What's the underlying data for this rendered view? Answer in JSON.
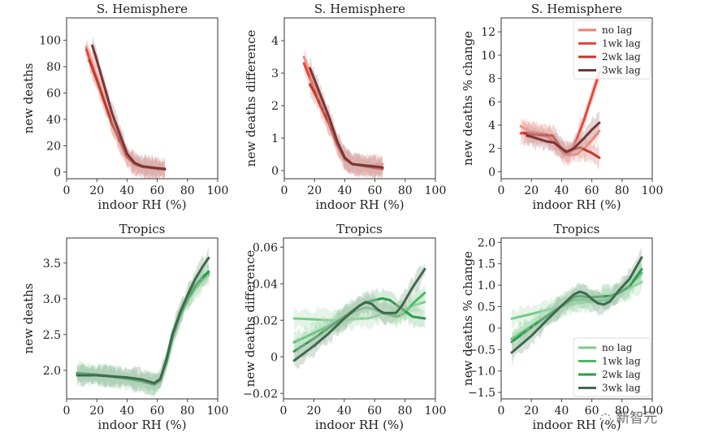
{
  "chart_data": [
    {
      "type": "line",
      "title": "S. Hemisphere",
      "xlabel": "indoor RH (%)",
      "ylabel": "new deaths",
      "xlim": [
        0,
        100
      ],
      "ylim": [
        -5,
        117
      ],
      "xticks": [
        0,
        20,
        40,
        60,
        80,
        100
      ],
      "yticks": [
        0,
        20,
        40,
        60,
        80,
        100
      ],
      "ytick_labels": [
        "0",
        "20",
        "40",
        "60",
        "80",
        "100"
      ],
      "legend": null,
      "series": [
        {
          "name": "no lag",
          "color": "#f08070",
          "x": [
            13,
            20,
            30,
            40,
            45,
            50,
            60,
            65
          ],
          "y": [
            95,
            72,
            38,
            12,
            6,
            4,
            2.5,
            2
          ]
        },
        {
          "name": "1wk lag",
          "color": "#e8483a",
          "x": [
            13,
            20,
            30,
            40,
            45,
            50,
            60,
            65
          ],
          "y": [
            93,
            70,
            37,
            11,
            6,
            4,
            2.5,
            2
          ]
        },
        {
          "name": "2wk lag",
          "color": "#c0392b",
          "x": [
            15,
            20,
            30,
            40,
            45,
            50,
            60,
            65
          ],
          "y": [
            85,
            70,
            37,
            12,
            6,
            4,
            2.5,
            2
          ]
        },
        {
          "name": "3wk lag",
          "color": "#7a3535",
          "x": [
            17,
            20,
            30,
            40,
            45,
            50,
            60,
            65
          ],
          "y": [
            96,
            85,
            45,
            14,
            7,
            4.5,
            3,
            2.5
          ]
        }
      ]
    },
    {
      "type": "line",
      "title": "S. Hemisphere",
      "xlabel": "indoor RH (%)",
      "ylabel": "new deaths difference",
      "xlim": [
        0,
        100
      ],
      "ylim": [
        -0.25,
        4.7
      ],
      "xticks": [
        0,
        20,
        40,
        60,
        80,
        100
      ],
      "yticks": [
        0,
        1,
        2,
        3,
        4
      ],
      "ytick_labels": [
        "0",
        "1",
        "2",
        "3",
        "4"
      ],
      "legend": null,
      "series": [
        {
          "name": "no lag",
          "color": "#f08070",
          "x": [
            13,
            20,
            30,
            35,
            40,
            45,
            55,
            65
          ],
          "y": [
            3.5,
            2.6,
            1.4,
            0.8,
            0.35,
            0.2,
            0.15,
            0.2
          ]
        },
        {
          "name": "1wk lag",
          "color": "#e8483a",
          "x": [
            13,
            20,
            30,
            35,
            40,
            45,
            55,
            65
          ],
          "y": [
            3.3,
            2.5,
            1.4,
            0.8,
            0.35,
            0.2,
            0.12,
            0.1
          ]
        },
        {
          "name": "2wk lag",
          "color": "#c0392b",
          "x": [
            17,
            20,
            30,
            35,
            40,
            45,
            55,
            65
          ],
          "y": [
            2.65,
            2.4,
            1.4,
            0.8,
            0.35,
            0.2,
            0.12,
            0.05
          ]
        },
        {
          "name": "3wk lag",
          "color": "#7a3535",
          "x": [
            17,
            20,
            30,
            35,
            40,
            45,
            55,
            65
          ],
          "y": [
            3.15,
            2.8,
            1.6,
            0.9,
            0.4,
            0.2,
            0.15,
            0.1
          ]
        }
      ]
    },
    {
      "type": "line",
      "title": "S. Hemisphere",
      "xlabel": "indoor RH (%)",
      "ylabel": "new deaths % change",
      "xlim": [
        0,
        100
      ],
      "ylim": [
        -0.6,
        13.2
      ],
      "xticks": [
        0,
        20,
        40,
        60,
        80,
        100
      ],
      "yticks": [
        0,
        2,
        4,
        6,
        8,
        10,
        12
      ],
      "ytick_labels": [
        "0",
        "2",
        "4",
        "6",
        "8",
        "10",
        "12"
      ],
      "legend": {
        "position": "top-right",
        "entries": [
          "no lag",
          "1wk lag",
          "2wk lag",
          "3wk lag"
        ]
      },
      "series": [
        {
          "name": "no lag",
          "color": "#f08070",
          "x": [
            13,
            20,
            30,
            35,
            42,
            45,
            50,
            55,
            60,
            65
          ],
          "y": [
            3.9,
            3.4,
            3.0,
            2.5,
            1.6,
            1.4,
            1.5,
            2.0,
            2.7,
            3.5
          ]
        },
        {
          "name": "1wk lag",
          "color": "#e8483a",
          "x": [
            13,
            20,
            30,
            35,
            42,
            45,
            50,
            55,
            60,
            65
          ],
          "y": [
            3.3,
            3.4,
            3.2,
            2.5,
            1.5,
            1.5,
            2.8,
            4.5,
            6.5,
            8.5
          ]
        },
        {
          "name": "2wk lag",
          "color": "#c0392b",
          "x": [
            15,
            20,
            30,
            34,
            40,
            44,
            48,
            52,
            60,
            65
          ],
          "y": [
            3.3,
            3.2,
            3.1,
            3.1,
            2.0,
            1.7,
            1.9,
            2.1,
            1.6,
            1.2
          ]
        },
        {
          "name": "3wk lag",
          "color": "#7a3535",
          "x": [
            17,
            20,
            30,
            35,
            40,
            43,
            48,
            55,
            60,
            65
          ],
          "y": [
            3.1,
            3.0,
            2.6,
            2.5,
            2.0,
            1.7,
            2.0,
            2.9,
            3.6,
            4.2
          ]
        }
      ]
    },
    {
      "type": "line",
      "title": "Tropics",
      "xlabel": "indoor RH (%)",
      "ylabel": "new deaths",
      "xlim": [
        0,
        100
      ],
      "ylim": [
        1.6,
        3.85
      ],
      "xticks": [
        0,
        20,
        40,
        60,
        80,
        100
      ],
      "yticks": [
        2.0,
        2.5,
        3.0,
        3.5
      ],
      "ytick_labels": [
        "2.0",
        "2.5",
        "3.0",
        "3.5"
      ],
      "legend": null,
      "series": [
        {
          "name": "no lag",
          "color": "#7cc98a",
          "x": [
            7,
            20,
            40,
            50,
            58,
            62,
            66,
            70,
            75,
            80,
            85,
            90,
            94
          ],
          "y": [
            1.96,
            1.93,
            1.88,
            1.84,
            1.8,
            1.85,
            2.1,
            2.45,
            2.75,
            2.97,
            3.13,
            3.25,
            3.33
          ]
        },
        {
          "name": "1wk lag",
          "color": "#4fb865",
          "x": [
            7,
            20,
            40,
            50,
            58,
            62,
            66,
            70,
            75,
            80,
            85,
            90,
            94
          ],
          "y": [
            1.96,
            1.94,
            1.88,
            1.84,
            1.8,
            1.85,
            2.1,
            2.45,
            2.75,
            2.98,
            3.15,
            3.28,
            3.36
          ]
        },
        {
          "name": "2wk lag",
          "color": "#2e9a4a",
          "x": [
            7,
            20,
            40,
            50,
            58,
            62,
            66,
            70,
            75,
            80,
            85,
            90,
            94
          ],
          "y": [
            1.96,
            1.94,
            1.89,
            1.85,
            1.8,
            1.86,
            2.12,
            2.46,
            2.77,
            3.0,
            3.18,
            3.3,
            3.38
          ]
        },
        {
          "name": "3wk lag",
          "color": "#3d6b4c",
          "x": [
            7,
            20,
            40,
            50,
            58,
            62,
            66,
            70,
            75,
            80,
            85,
            90,
            94
          ],
          "y": [
            1.93,
            1.93,
            1.9,
            1.87,
            1.82,
            1.88,
            2.15,
            2.5,
            2.8,
            3.05,
            3.27,
            3.45,
            3.57
          ]
        }
      ]
    },
    {
      "type": "line",
      "title": "Tropics",
      "xlabel": "indoor RH (%)",
      "ylabel": "new deaths difference",
      "xlim": [
        0,
        100
      ],
      "ylim": [
        -0.023,
        0.065
      ],
      "xticks": [
        0,
        20,
        40,
        60,
        80,
        100
      ],
      "yticks": [
        -0.02,
        0,
        0.02,
        0.04,
        0.06
      ],
      "ytick_labels": [
        "−0.02",
        "0",
        "0.02",
        "0.04",
        "0.06"
      ],
      "legend": null,
      "series": [
        {
          "name": "no lag",
          "color": "#7cc98a",
          "x": [
            7,
            20,
            30,
            40,
            50,
            55,
            60,
            65,
            70,
            74,
            80,
            85,
            93
          ],
          "y": [
            0.021,
            0.0205,
            0.02,
            0.02,
            0.021,
            0.021,
            0.022,
            0.024,
            0.024,
            0.022,
            0.026,
            0.028,
            0.03
          ]
        },
        {
          "name": "1wk lag",
          "color": "#4fb865",
          "x": [
            7,
            20,
            30,
            40,
            50,
            55,
            60,
            65,
            70,
            75,
            80,
            85,
            93
          ],
          "y": [
            0.008,
            0.013,
            0.017,
            0.022,
            0.026,
            0.027,
            0.026,
            0.024,
            0.023,
            0.022,
            0.024,
            0.029,
            0.035
          ]
        },
        {
          "name": "2wk lag",
          "color": "#2e9a4a",
          "x": [
            7,
            20,
            30,
            40,
            50,
            55,
            60,
            65,
            70,
            75,
            80,
            85,
            93
          ],
          "y": [
            0.003,
            0.01,
            0.016,
            0.022,
            0.028,
            0.03,
            0.031,
            0.032,
            0.031,
            0.028,
            0.025,
            0.022,
            0.021
          ]
        },
        {
          "name": "3wk lag",
          "color": "#3d6b4c",
          "x": [
            7,
            20,
            30,
            40,
            50,
            54,
            58,
            62,
            66,
            70,
            74,
            78,
            85,
            93
          ],
          "y": [
            -0.002,
            0.006,
            0.013,
            0.021,
            0.028,
            0.03,
            0.029,
            0.026,
            0.024,
            0.024,
            0.024,
            0.028,
            0.038,
            0.048
          ]
        }
      ]
    },
    {
      "type": "line",
      "title": "Tropics",
      "xlabel": "indoor RH (%)",
      "ylabel": "new deaths % change",
      "xlim": [
        0,
        100
      ],
      "ylim": [
        -1.65,
        2.1
      ],
      "xticks": [
        0,
        20,
        40,
        60,
        80,
        100
      ],
      "yticks": [
        -1.5,
        -1.0,
        -0.5,
        0,
        0.5,
        1.0,
        1.5,
        2.0
      ],
      "ytick_labels": [
        "−1.5",
        "−1.0",
        "−0.5",
        "0",
        "0.5",
        "1.0",
        "1.5",
        "2.0"
      ],
      "legend": {
        "position": "lower-right",
        "entries": [
          "no lag",
          "1wk lag",
          "2wk lag",
          "3wk lag"
        ]
      },
      "series": [
        {
          "name": "no lag",
          "color": "#7cc98a",
          "x": [
            7,
            20,
            30,
            40,
            50,
            60,
            70,
            80,
            86,
            93
          ],
          "y": [
            0.22,
            0.33,
            0.42,
            0.5,
            0.58,
            0.62,
            0.7,
            0.85,
            0.95,
            1.08
          ]
        },
        {
          "name": "1wk lag",
          "color": "#4fb865",
          "x": [
            7,
            20,
            30,
            40,
            48,
            55,
            62,
            70,
            77,
            84,
            93
          ],
          "y": [
            -0.25,
            0.05,
            0.28,
            0.52,
            0.65,
            0.67,
            0.62,
            0.65,
            0.82,
            0.95,
            1.28
          ]
        },
        {
          "name": "2wk lag",
          "color": "#2e9a4a",
          "x": [
            7,
            20,
            30,
            40,
            48,
            52,
            58,
            65,
            72,
            78,
            85,
            93
          ],
          "y": [
            -0.32,
            0.02,
            0.27,
            0.52,
            0.72,
            0.75,
            0.72,
            0.73,
            0.75,
            0.82,
            0.98,
            1.37
          ]
        },
        {
          "name": "3wk lag",
          "color": "#3d6b4c",
          "x": [
            7,
            20,
            30,
            40,
            48,
            52,
            56,
            60,
            64,
            68,
            72,
            78,
            85,
            93
          ],
          "y": [
            -0.57,
            -0.18,
            0.18,
            0.52,
            0.78,
            0.85,
            0.8,
            0.68,
            0.58,
            0.55,
            0.62,
            0.88,
            1.15,
            1.65
          ]
        }
      ]
    }
  ],
  "watermark": {
    "text": "新智元"
  }
}
